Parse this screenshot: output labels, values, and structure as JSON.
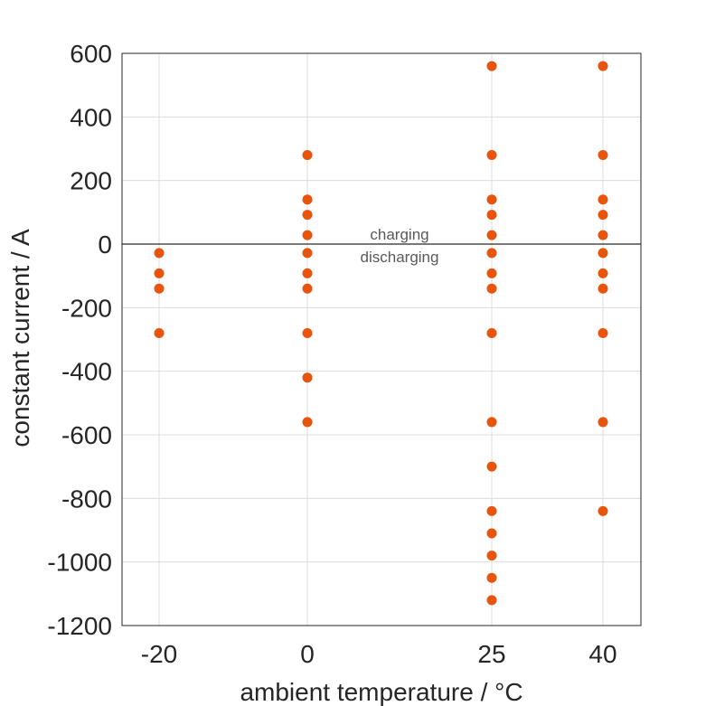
{
  "chart_data": {
    "type": "scatter",
    "xlabel": "ambient temperature / °C",
    "ylabel": "constant current / A",
    "x_ticks": [
      -20,
      0,
      25,
      40
    ],
    "y_ticks": [
      600,
      400,
      200,
      0,
      -200,
      -400,
      -600,
      -800,
      -1000,
      -1200
    ],
    "xlim": [
      -25,
      45
    ],
    "ylim": [
      -1200,
      600
    ],
    "grid": true,
    "marker_color": "#E8540C",
    "annotations": [
      "charging",
      "discharging"
    ],
    "series": [
      {
        "x": -20,
        "values": [
          -28,
          -92,
          -140,
          -280
        ]
      },
      {
        "x": 0,
        "values": [
          280,
          140,
          92,
          28,
          -28,
          -92,
          -140,
          -280,
          -420,
          -560
        ]
      },
      {
        "x": 25,
        "values": [
          560,
          280,
          140,
          92,
          28,
          -28,
          -92,
          -140,
          -280,
          -560,
          -700,
          -840,
          -910,
          -980,
          -1050,
          -1120
        ]
      },
      {
        "x": 40,
        "values": [
          560,
          280,
          140,
          92,
          28,
          -28,
          -92,
          -140,
          -280,
          -560,
          -840
        ]
      }
    ]
  }
}
